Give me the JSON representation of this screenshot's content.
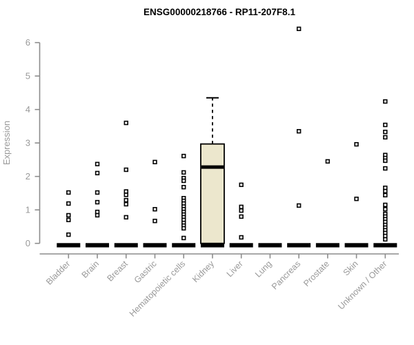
{
  "chart_data": {
    "type": "boxplot",
    "title": "ENSG00000218766 - RP11-207F8.1",
    "ylabel": "Expression",
    "xlabel": "",
    "ylim": [
      0,
      6
    ],
    "yticks": [
      0,
      1,
      2,
      3,
      4,
      5,
      6
    ],
    "grid": false,
    "legend": "none",
    "colors": {
      "box_fill": "#ece7cd",
      "box_stroke": "#000000",
      "axis": "#8c8c8c",
      "labels": "#999999",
      "title": "#000000",
      "outlier_fill": "#ffffff",
      "background": "#ffffff"
    },
    "categories": [
      "Bladder",
      "Brain",
      "Breast",
      "Gastric",
      "Hematopoietic cells",
      "Kidney",
      "Liver",
      "Lung",
      "Pancreas",
      "Prostate",
      "Skin",
      "Unknown / Other"
    ],
    "series": [
      {
        "category": "Bladder",
        "box": {
          "whisker_low": 0,
          "q1": 0,
          "median": 0,
          "q3": 0,
          "whisker_high": 0
        },
        "outliers": [
          1.52,
          1.19,
          0.84,
          0.7,
          0.26
        ]
      },
      {
        "category": "Brain",
        "box": {
          "whisker_low": 0,
          "q1": 0,
          "median": 0,
          "q3": 0,
          "whisker_high": 0
        },
        "outliers": [
          2.37,
          2.1,
          1.52,
          1.23,
          0.94,
          0.84
        ]
      },
      {
        "category": "Breast",
        "box": {
          "whisker_low": 0,
          "q1": 0,
          "median": 0,
          "q3": 0,
          "whisker_high": 0
        },
        "outliers": [
          3.6,
          2.2,
          1.55,
          1.45,
          1.29,
          1.17,
          0.78
        ]
      },
      {
        "category": "Gastric",
        "box": {
          "whisker_low": 0,
          "q1": 0,
          "median": 0,
          "q3": 0,
          "whisker_high": 0
        },
        "outliers": [
          2.43,
          1.02,
          0.67
        ]
      },
      {
        "category": "Hematopoietic cells",
        "box": {
          "whisker_low": 0,
          "q1": 0,
          "median": 0,
          "q3": 0,
          "whisker_high": 0
        },
        "outliers": [
          2.61,
          2.12,
          1.95,
          1.87,
          1.68,
          1.35,
          1.27,
          1.19,
          1.1,
          1.02,
          0.94,
          0.86,
          0.78,
          0.7,
          0.61,
          0.53,
          0.45,
          0.16
        ]
      },
      {
        "category": "Kidney",
        "box": {
          "whisker_low": 0,
          "q1": 0,
          "median": 2.28,
          "q3": 2.97,
          "whisker_high": 4.35
        },
        "outliers": []
      },
      {
        "category": "Liver",
        "box": {
          "whisker_low": 0,
          "q1": 0,
          "median": 0,
          "q3": 0,
          "whisker_high": 0
        },
        "outliers": [
          1.75,
          1.09,
          0.98,
          0.8,
          0.18
        ]
      },
      {
        "category": "Lung",
        "box": {
          "whisker_low": 0,
          "q1": 0,
          "median": 0,
          "q3": 0,
          "whisker_high": 0
        },
        "outliers": []
      },
      {
        "category": "Pancreas",
        "box": {
          "whisker_low": 0,
          "q1": 0,
          "median": 0,
          "q3": 0,
          "whisker_high": 0
        },
        "outliers": [
          6.41,
          3.35,
          1.13
        ]
      },
      {
        "category": "Prostate",
        "box": {
          "whisker_low": 0,
          "q1": 0,
          "median": 0,
          "q3": 0,
          "whisker_high": 0
        },
        "outliers": [
          2.45
        ]
      },
      {
        "category": "Skin",
        "box": {
          "whisker_low": 0,
          "q1": 0,
          "median": 0,
          "q3": 0,
          "whisker_high": 0
        },
        "outliers": [
          2.96,
          1.33
        ]
      },
      {
        "category": "Unknown / Other",
        "box": {
          "whisker_low": 0,
          "q1": 0,
          "median": 0,
          "q3": 0,
          "whisker_high": 0
        },
        "outliers": [
          4.24,
          3.54,
          3.33,
          3.17,
          2.64,
          2.55,
          2.47,
          2.24,
          1.66,
          1.56,
          1.44,
          1.15,
          1.02,
          0.88,
          0.8,
          0.72,
          0.64,
          0.55,
          0.47,
          0.39,
          0.31,
          0.22,
          0.12
        ]
      }
    ]
  }
}
